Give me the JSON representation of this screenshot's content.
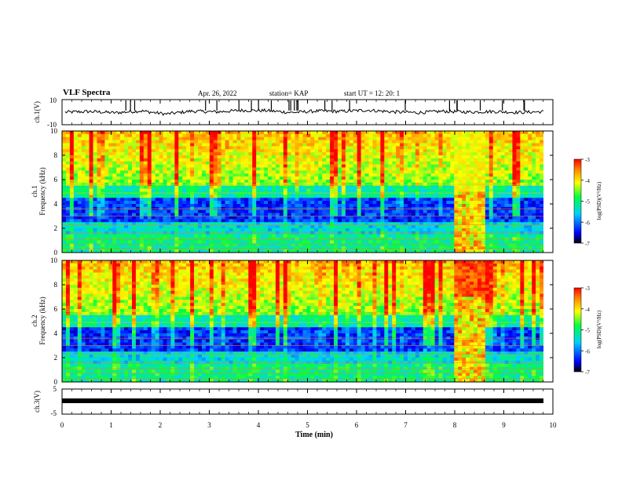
{
  "header": {
    "title": "VLF Spectra",
    "date": "Apr. 26, 2022",
    "station": "station= KAP",
    "start": "start  UT =   12: 20: 1"
  },
  "chart_data": [
    {
      "type": "line",
      "panel": "ch1-waveform",
      "ylabel": "ch.1(V)",
      "ylim": [
        -10,
        10
      ],
      "ytick_labels": [
        "10",
        "-10"
      ],
      "baseline_value": 0,
      "series": [
        {
          "values": [
            0,
            0.5,
            -0.5,
            1,
            -1.5,
            0.8,
            0.2,
            1.4,
            1.2,
            -0.3,
            0.9,
            0.6,
            1.6,
            0.3,
            -0.4,
            0.7,
            0.1,
            0.5,
            -0.2,
            0.4
          ]
        }
      ]
    },
    {
      "type": "heatmap",
      "panel": "ch1-spectrogram",
      "ylabel": "ch.1\nFrequency (kHz)",
      "ylim": [
        0,
        10
      ],
      "yticks": [
        0,
        2,
        4,
        6,
        8,
        10
      ],
      "xlim": [
        0,
        10
      ],
      "colorbar": {
        "label": "log(PSD)(V²/Hz)",
        "range": [
          -7,
          -3
        ],
        "ticks": [
          "-3",
          "-4",
          "-5",
          "-6",
          "-7"
        ]
      }
    },
    {
      "type": "heatmap",
      "panel": "ch2-spectrogram",
      "ylabel": "ch.2\nFrequency (kHz)",
      "ylim": [
        0,
        10
      ],
      "yticks": [
        0,
        2,
        4,
        6,
        8,
        10
      ],
      "xlim": [
        0,
        10
      ],
      "colorbar": {
        "label": "log(PSD)(V²/Hz)",
        "range": [
          -7,
          -3
        ],
        "ticks": [
          "-3",
          "-4",
          "-5",
          "-6",
          "-7"
        ]
      }
    },
    {
      "type": "line",
      "panel": "ch3-waveform",
      "ylabel": "ch.3(V)",
      "ylim": [
        -5,
        5
      ],
      "ytick_labels": [
        "5",
        "-5"
      ],
      "series": [
        {
          "values": [
            -1.5,
            -1.5
          ]
        }
      ]
    }
  ],
  "xaxis": {
    "label": "Time (min)",
    "xlim": [
      0,
      10
    ],
    "tick_labels": [
      "0",
      "1",
      "2",
      "3",
      "4",
      "5",
      "6",
      "7",
      "8",
      "9",
      "10"
    ]
  }
}
